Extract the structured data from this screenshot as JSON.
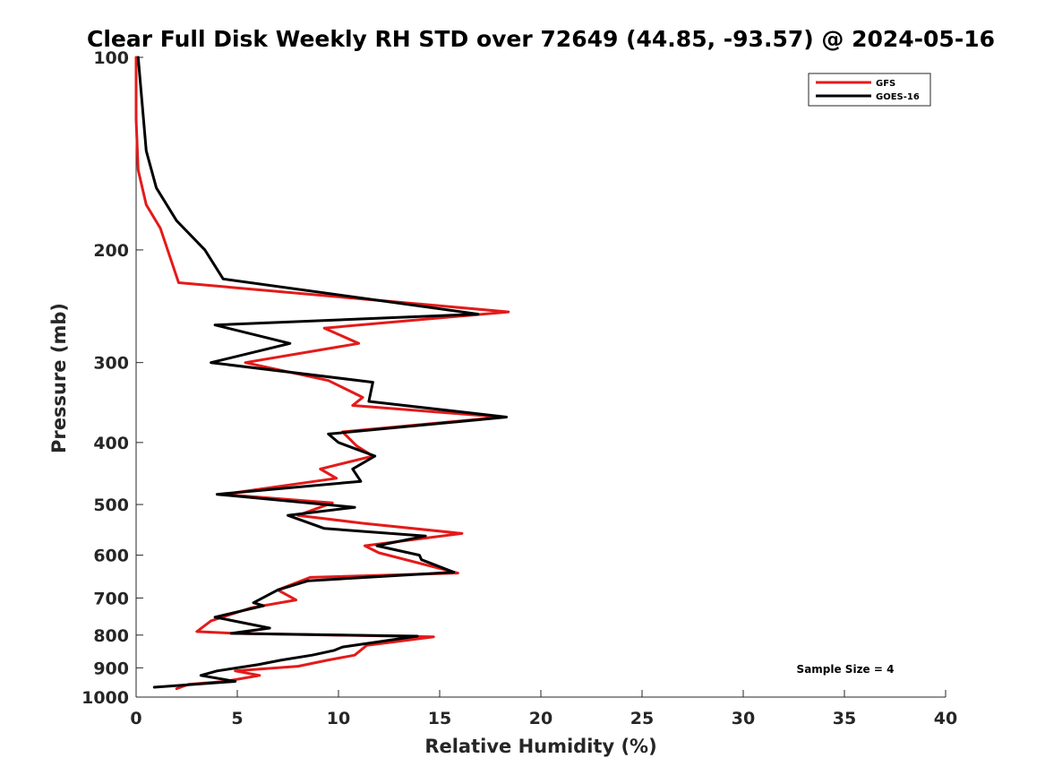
{
  "chart_data": {
    "type": "line",
    "title": "Clear Full Disk Weekly RH STD over 72649 (44.85, -93.57) @ 2024-05-16",
    "xlabel": "Relative Humidity (%)",
    "ylabel": "Pressure (mb)",
    "xlim": [
      0,
      40
    ],
    "ylim": [
      100,
      1000
    ],
    "y_scale": "log",
    "y_reversed": true,
    "x_ticks": [
      0,
      5,
      10,
      15,
      20,
      25,
      30,
      35,
      40
    ],
    "y_ticks": [
      100,
      200,
      300,
      400,
      500,
      600,
      700,
      800,
      900,
      1000
    ],
    "grid": false,
    "legend_position": "top-right",
    "annotation": "Sample Size = 4",
    "series": [
      {
        "name": "GFS",
        "color": "#e41a1a",
        "points": [
          [
            0.0,
            100
          ],
          [
            0.0,
            125
          ],
          [
            0.1,
            150
          ],
          [
            0.5,
            170
          ],
          [
            1.2,
            185
          ],
          [
            2.1,
            225
          ],
          [
            18.4,
            250
          ],
          [
            9.3,
            265
          ],
          [
            11.0,
            280
          ],
          [
            5.4,
            300
          ],
          [
            9.5,
            320
          ],
          [
            11.2,
            340
          ],
          [
            10.7,
            350
          ],
          [
            18.1,
            365
          ],
          [
            10.2,
            385
          ],
          [
            10.9,
            405
          ],
          [
            11.7,
            420
          ],
          [
            9.1,
            440
          ],
          [
            9.9,
            455
          ],
          [
            4.3,
            482
          ],
          [
            9.7,
            497
          ],
          [
            8.0,
            520
          ],
          [
            11.2,
            535
          ],
          [
            16.1,
            555
          ],
          [
            11.3,
            580
          ],
          [
            12.0,
            595
          ],
          [
            15.9,
            640
          ],
          [
            8.6,
            650
          ],
          [
            7.0,
            680
          ],
          [
            7.9,
            705
          ],
          [
            5.7,
            725
          ],
          [
            3.7,
            760
          ],
          [
            3.0,
            790
          ],
          [
            4.9,
            795
          ],
          [
            14.7,
            805
          ],
          [
            11.4,
            830
          ],
          [
            10.8,
            860
          ],
          [
            9.5,
            875
          ],
          [
            8.0,
            895
          ],
          [
            4.9,
            910
          ],
          [
            6.1,
            925
          ],
          [
            4.4,
            945
          ],
          [
            2.6,
            955
          ],
          [
            2.0,
            970
          ]
        ]
      },
      {
        "name": "GOES-16",
        "color": "#000000",
        "points": [
          [
            0.1,
            100
          ],
          [
            0.5,
            140
          ],
          [
            1.0,
            160
          ],
          [
            2.0,
            180
          ],
          [
            3.4,
            200
          ],
          [
            4.3,
            222
          ],
          [
            16.9,
            252
          ],
          [
            3.9,
            262
          ],
          [
            7.6,
            280
          ],
          [
            3.7,
            300
          ],
          [
            11.7,
            322
          ],
          [
            11.5,
            345
          ],
          [
            18.3,
            365
          ],
          [
            9.5,
            388
          ],
          [
            10.0,
            400
          ],
          [
            11.8,
            420
          ],
          [
            10.7,
            440
          ],
          [
            11.1,
            460
          ],
          [
            4.0,
            482
          ],
          [
            10.8,
            505
          ],
          [
            7.5,
            520
          ],
          [
            9.3,
            545
          ],
          [
            14.3,
            560
          ],
          [
            11.9,
            580
          ],
          [
            14.0,
            600
          ],
          [
            14.1,
            610
          ],
          [
            15.7,
            638
          ],
          [
            8.5,
            658
          ],
          [
            7.0,
            680
          ],
          [
            5.8,
            712
          ],
          [
            6.3,
            720
          ],
          [
            3.9,
            750
          ],
          [
            6.6,
            780
          ],
          [
            4.7,
            795
          ],
          [
            13.9,
            803
          ],
          [
            10.2,
            835
          ],
          [
            9.8,
            845
          ],
          [
            8.7,
            860
          ],
          [
            7.2,
            875
          ],
          [
            6.0,
            890
          ],
          [
            4.0,
            910
          ],
          [
            3.2,
            925
          ],
          [
            4.9,
            945
          ],
          [
            0.9,
            965
          ]
        ]
      }
    ]
  }
}
